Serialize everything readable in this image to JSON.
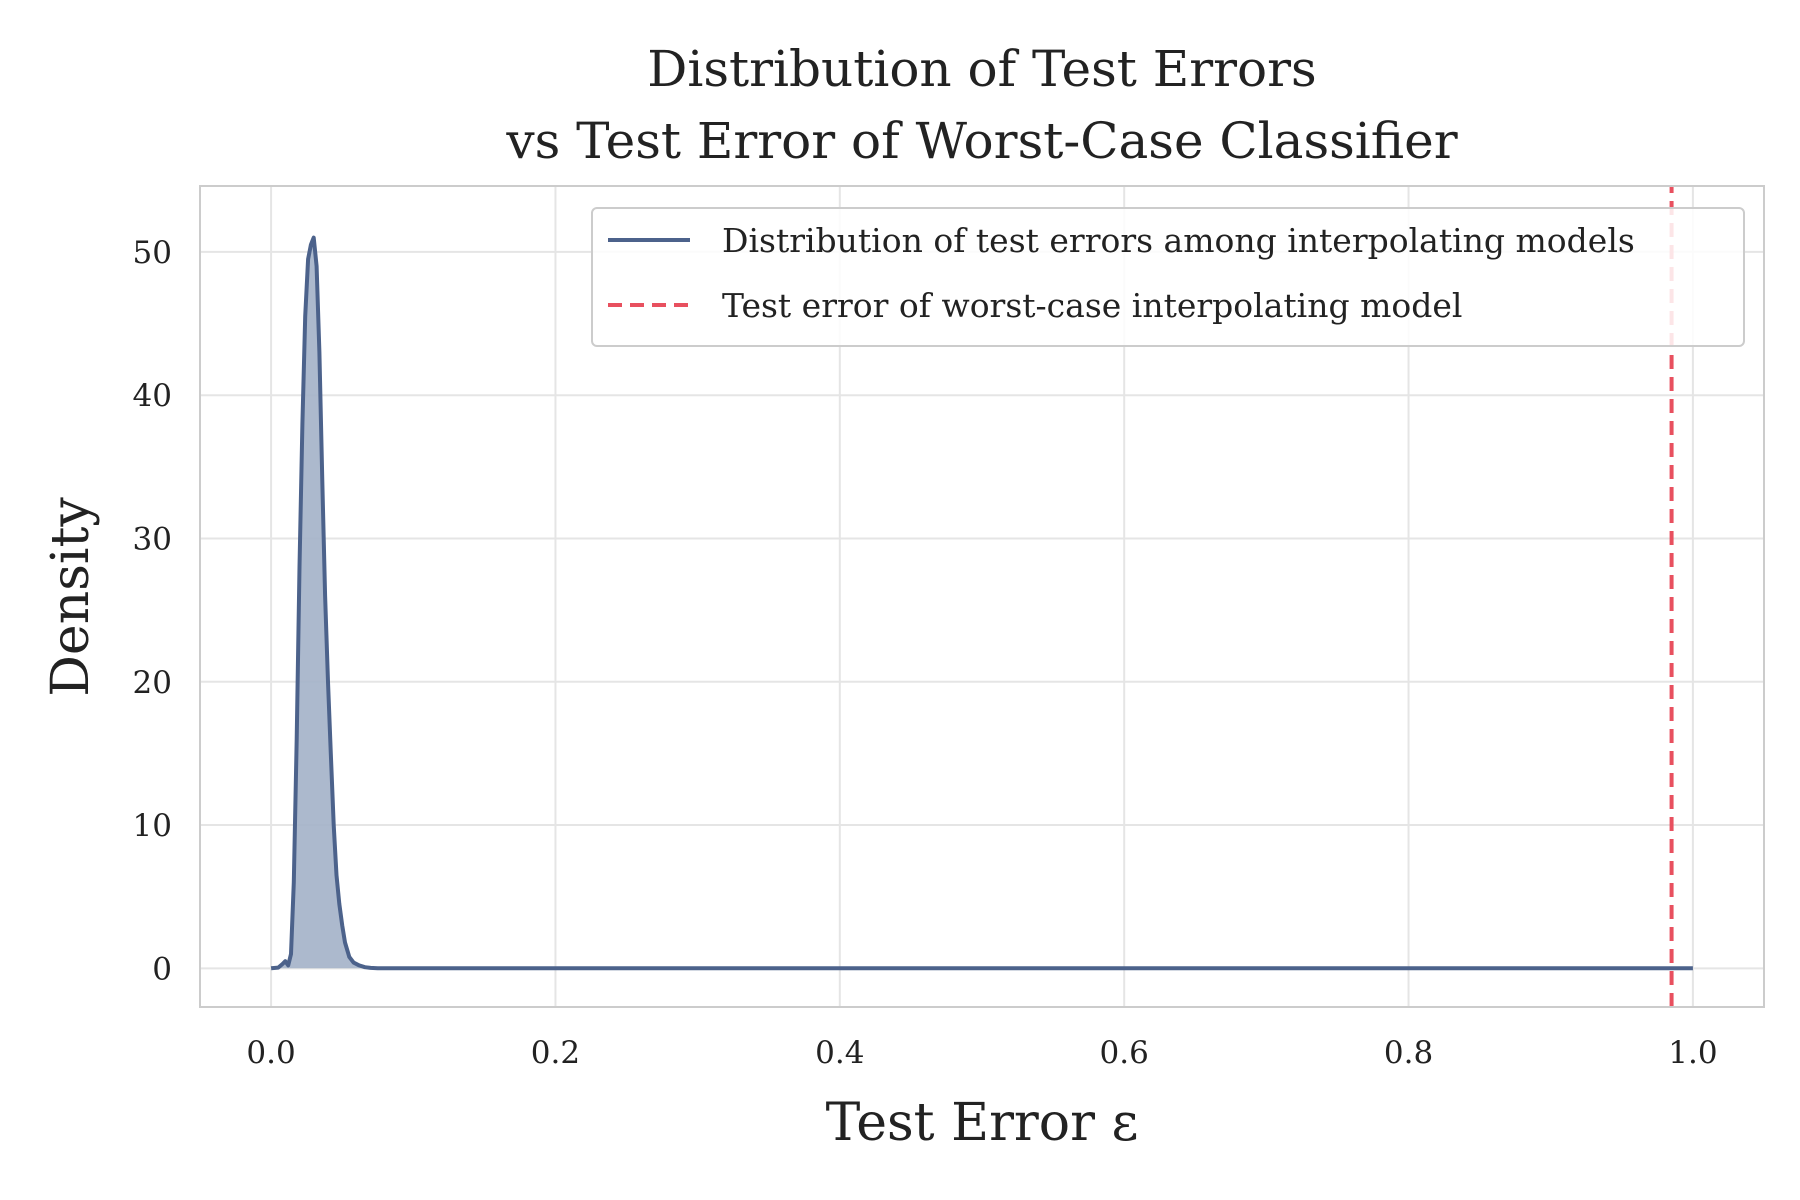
{
  "chart_data": {
    "type": "area",
    "title": "Distribution of Test Errors",
    "subtitle": "vs Test Error of Worst-Case Classifier",
    "xlabel": "Test Error ε",
    "ylabel": "Density",
    "xlim": [
      -0.05,
      1.05
    ],
    "ylim": [
      -2.7,
      54.6
    ],
    "xticks": [
      0.0,
      0.2,
      0.4,
      0.6,
      0.8,
      1.0
    ],
    "xtick_labels": [
      "0.0",
      "0.2",
      "0.4",
      "0.6",
      "0.8",
      "1.0"
    ],
    "yticks": [
      0,
      10,
      20,
      30,
      40,
      50
    ],
    "ytick_labels": [
      "0",
      "10",
      "20",
      "30",
      "40",
      "50"
    ],
    "grid": true,
    "legend_position": "top-right",
    "series": [
      {
        "name": "Distribution of test errors among interpolating models",
        "kind": "density",
        "color": "#4c628b",
        "fill_color": "#a3b1c8",
        "x": [
          0.0,
          0.005,
          0.008,
          0.01,
          0.012,
          0.014,
          0.016,
          0.018,
          0.02,
          0.022,
          0.024,
          0.026,
          0.028,
          0.03,
          0.032,
          0.034,
          0.036,
          0.038,
          0.04,
          0.042,
          0.044,
          0.046,
          0.048,
          0.05,
          0.052,
          0.055,
          0.058,
          0.062,
          0.066,
          0.07,
          0.075,
          0.08,
          0.1,
          0.2,
          0.4,
          0.6,
          0.8,
          1.0
        ],
        "y": [
          0.0,
          0.05,
          0.3,
          0.5,
          0.2,
          1.0,
          6.0,
          16.0,
          28.0,
          38.0,
          45.5,
          49.5,
          50.5,
          51.0,
          49.0,
          43.0,
          34.0,
          26.0,
          20.0,
          15.0,
          10.0,
          6.5,
          4.5,
          3.0,
          1.8,
          0.8,
          0.4,
          0.2,
          0.08,
          0.03,
          0.01,
          0.0,
          0.0,
          0.0,
          0.0,
          0.0,
          0.0,
          0.0
        ]
      },
      {
        "name": "Test error of worst-case interpolating model",
        "kind": "vline",
        "color": "#e8505f",
        "x": 0.985
      }
    ]
  }
}
